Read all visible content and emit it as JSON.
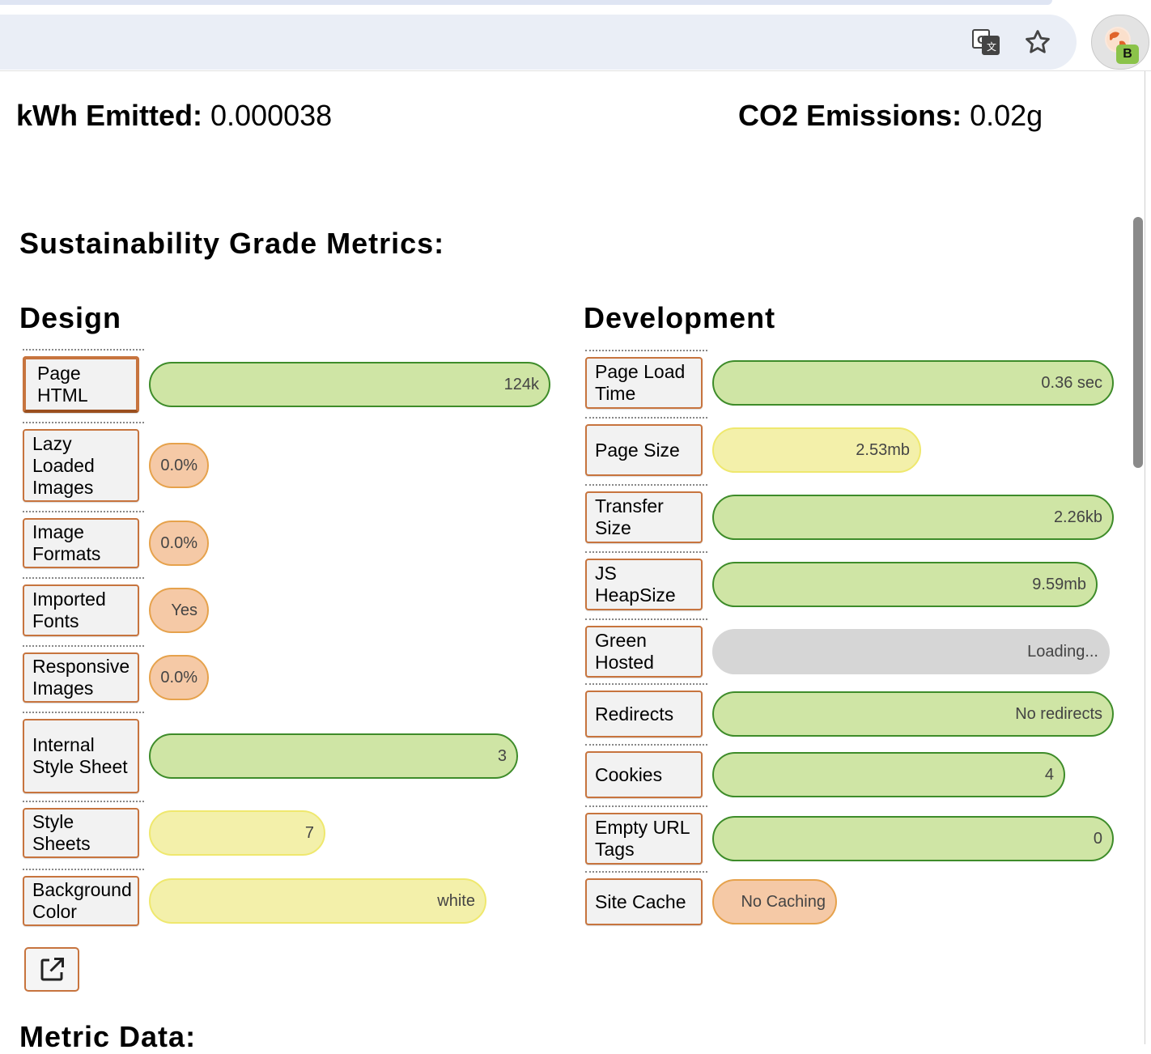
{
  "header": {
    "kwh_label": "kWh Emitted:",
    "kwh_value": "0.000038",
    "co2_label": "CO2 Emissions:",
    "co2_value": "0.02g"
  },
  "section_title": "Sustainability Grade Metrics:",
  "design": {
    "title": "Design",
    "items": [
      {
        "label": "Page HTML",
        "value": "124k",
        "status": "green",
        "fill": 1.0
      },
      {
        "label": "Lazy Loaded Images",
        "value": "0.0%",
        "status": "orange",
        "fill": 0.15
      },
      {
        "label": "Image Formats",
        "value": "0.0%",
        "status": "orange",
        "fill": 0.15
      },
      {
        "label": "Imported Fonts",
        "value": "Yes",
        "status": "orange",
        "fill": 0.15
      },
      {
        "label": "Responsive Images",
        "value": "0.0%",
        "status": "orange",
        "fill": 0.15
      },
      {
        "label": "Internal Style Sheet",
        "value": "3",
        "status": "green",
        "fill": 0.92
      },
      {
        "label": "Style Sheets",
        "value": "7",
        "status": "yellow",
        "fill": 0.44
      },
      {
        "label": "Background Color",
        "value": "white",
        "status": "yellow",
        "fill": 0.84
      }
    ]
  },
  "development": {
    "title": "Development",
    "items": [
      {
        "label": "Page Load Time",
        "value": "0.36 sec",
        "status": "green",
        "fill": 1.0
      },
      {
        "label": "Page Size",
        "value": "2.53mb",
        "status": "yellow",
        "fill": 0.52
      },
      {
        "label": "Transfer Size",
        "value": "2.26kb",
        "status": "green",
        "fill": 1.0
      },
      {
        "label": "JS HeapSize",
        "value": "9.59mb",
        "status": "green",
        "fill": 0.96
      },
      {
        "label": "Green Hosted",
        "value": "Loading...",
        "status": "gray",
        "fill": 0.99
      },
      {
        "label": "Redirects",
        "value": "No redirects",
        "status": "green",
        "fill": 1.0
      },
      {
        "label": "Cookies",
        "value": "4",
        "status": "green",
        "fill": 0.88
      },
      {
        "label": "Empty URL Tags",
        "value": "0",
        "status": "green",
        "fill": 1.0
      },
      {
        "label": "Site Cache",
        "value": "No Caching",
        "status": "orange",
        "fill": 0.31
      }
    ]
  },
  "footer_title": "Metric Data:",
  "icons": {
    "translate": "translate-icon",
    "star": "bookmark-star-icon",
    "extension": "extension-icon",
    "external_link": "external-link-icon"
  },
  "extension_badge": "B"
}
